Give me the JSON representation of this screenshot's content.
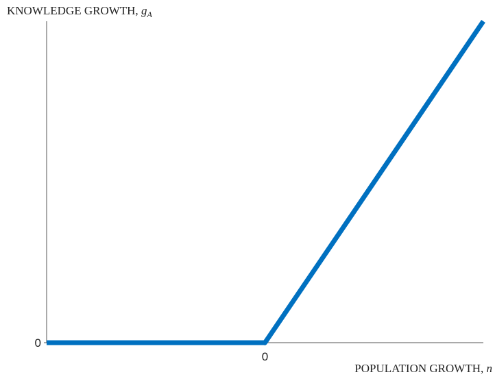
{
  "chart_data": {
    "type": "line",
    "ylabel": "KNOWLEDGE GROWTH, ",
    "ylabel_symbol": "g",
    "ylabel_subscript": "A",
    "xlabel": "POPULATION GROWTH, ",
    "xlabel_symbol": "n",
    "x": [
      -1,
      0,
      1
    ],
    "values": [
      0,
      0,
      1.5
    ],
    "color": "#0070c0",
    "xlim": [
      -1,
      1
    ],
    "ylim": [
      0,
      1.5
    ],
    "xticks": [
      0
    ],
    "yticks": [
      0
    ]
  }
}
